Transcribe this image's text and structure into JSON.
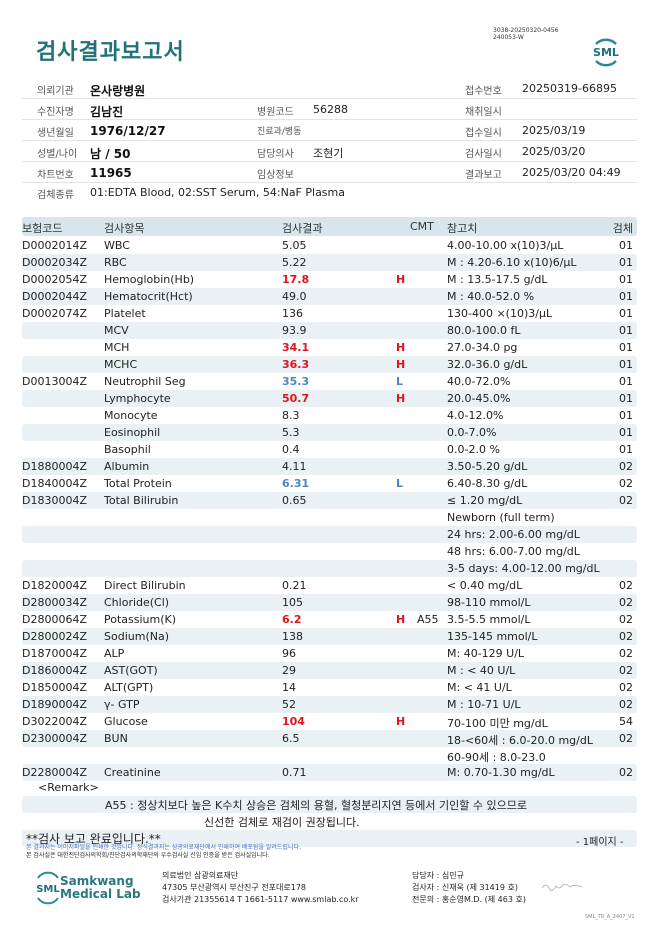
{
  "title": "검사결과보고서",
  "doc_id": [
    "3038-20250320-0456",
    "240053-W"
  ],
  "logo_text": "SML",
  "info": {
    "institution_label": "의뢰기관",
    "institution": "온사랑병원",
    "receipt_no_label": "접수번호",
    "receipt_no": "20250319-66895",
    "patient_label": "수진자명",
    "patient": "김남진",
    "hospital_code_label": "병원코드",
    "hospital_code": "56288",
    "collect_label": "채취일시",
    "collect": "",
    "dob_label": "생년월일",
    "dob": "1976/12/27",
    "dept_label": "진료과/병동",
    "dept": "",
    "receipt_date_label": "접수일시",
    "receipt_date": "2025/03/19",
    "sex_age_label": "성별/나이",
    "sex_age": "남 / 50",
    "doctor_label": "담당의사",
    "doctor": "조현기",
    "test_date_label": "검사일시",
    "test_date": "2025/03/20",
    "chart_label": "차트번호",
    "chart": "11965",
    "clinical_label": "임상정보",
    "clinical": "",
    "report_label": "결과보고",
    "report": "2025/03/20 04:49",
    "specimen_label": "검체종류",
    "specimen": "01:EDTA Blood, 02:SST Serum, 54:NaF Plasma"
  },
  "table": {
    "headers": [
      "보험코드",
      "검사항목",
      "검사결과",
      "CMT",
      "",
      "참고치",
      "검체"
    ],
    "rows": [
      [
        "D0002014Z",
        "WBC",
        "5.05",
        "",
        "",
        "4.00-10.00 x(10)3/μL",
        "01"
      ],
      [
        "D0002034Z",
        "RBC",
        "5.22",
        "",
        "",
        "M : 4.20-6.10 x(10)6/μL",
        "01"
      ],
      [
        "D0002054Z",
        "Hemoglobin(Hb)",
        "17.8",
        "H",
        "",
        "M : 13.5-17.5 g/dL",
        "01"
      ],
      [
        "D0002044Z",
        "Hematocrit(Hct)",
        "49.0",
        "",
        "",
        "M : 40.0-52.0 %",
        "01"
      ],
      [
        "D0002074Z",
        "Platelet",
        "136",
        "",
        "",
        "130-400 ×(10)3/μL",
        "01"
      ],
      [
        "",
        "MCV",
        "93.9",
        "",
        "",
        "80.0-100.0 fL",
        "01"
      ],
      [
        "",
        "MCH",
        "34.1",
        "H",
        "",
        "27.0-34.0 pg",
        "01"
      ],
      [
        "",
        "MCHC",
        "36.3",
        "H",
        "",
        "32.0-36.0 g/dL",
        "01"
      ],
      [
        "D0013004Z",
        "Neutrophil Seg",
        "35.3",
        "L",
        "",
        "40.0-72.0%",
        "01"
      ],
      [
        "",
        "Lymphocyte",
        "50.7",
        "H",
        "",
        "20.0-45.0%",
        "01"
      ],
      [
        "",
        "Monocyte",
        "8.3",
        "",
        "",
        "4.0-12.0%",
        "01"
      ],
      [
        "",
        "Eosinophil",
        "5.3",
        "",
        "",
        "0.0-7.0%",
        "01"
      ],
      [
        "",
        "Basophil",
        "0.4",
        "",
        "",
        "0.0-2.0 %",
        "01"
      ],
      [
        "D1880004Z",
        "Albumin",
        "4.11",
        "",
        "",
        "3.50-5.20 g/dL",
        "02"
      ],
      [
        "D1840004Z",
        "Total Protein",
        "6.31",
        "L",
        "",
        "6.40-8.30 g/dL",
        "02"
      ],
      [
        "D1830004Z",
        "Total Bilirubin",
        "0.65",
        "",
        "",
        "≤ 1.20 mg/dL",
        "02"
      ],
      [
        "",
        "",
        "",
        "",
        "",
        "Newborn (full term)",
        ""
      ],
      [
        "",
        "",
        "",
        "",
        "",
        "24 hrs: 2.00-6.00 mg/dL",
        ""
      ],
      [
        "",
        "",
        "",
        "",
        "",
        "48 hrs: 6.00-7.00 mg/dL",
        ""
      ],
      [
        "",
        "",
        "",
        "",
        "",
        "3-5 days: 4.00-12.00 mg/dL",
        ""
      ],
      [
        "D1820004Z",
        "Direct Bilirubin",
        "0.21",
        "",
        "",
        "< 0.40 mg/dL",
        "02"
      ],
      [
        "D2800034Z",
        "Chloride(Cl)",
        "105",
        "",
        "",
        "98-110 mmol/L",
        "02"
      ],
      [
        "D2800064Z",
        "Potassium(K)",
        "6.2",
        "H",
        "A55",
        "3.5-5.5 mmol/L",
        "02"
      ],
      [
        "D2800024Z",
        "Sodium(Na)",
        "138",
        "",
        "",
        "135-145 mmol/L",
        "02"
      ],
      [
        "D1870004Z",
        "ALP",
        "96",
        "",
        "",
        "M: 40-129 U/L",
        "02"
      ],
      [
        "D1860004Z",
        "AST(GOT)",
        "29",
        "",
        "",
        "M : < 40 U/L",
        "02"
      ],
      [
        "D1850004Z",
        "ALT(GPT)",
        "14",
        "",
        "",
        "M: < 41 U/L",
        "02"
      ],
      [
        "D1890004Z",
        "γ- GTP",
        "52",
        "",
        "",
        "M : 10-71 U/L",
        "02"
      ],
      [
        "D3022004Z",
        "Glucose",
        "104",
        "H",
        "",
        "70-100 미만 mg/dL",
        "54"
      ],
      [
        "D2300004Z",
        "BUN",
        "6.5",
        "",
        "",
        "18-<60세 : 6.0-20.0 mg/dL",
        "02"
      ],
      [
        "",
        "",
        "",
        "",
        "",
        "60-90세 : 8.0-23.0",
        ""
      ],
      [
        "D2280004Z",
        "Creatinine",
        "0.71",
        "",
        "",
        "M: 0.70-1.30 mg/dL",
        "02"
      ]
    ]
  },
  "remark": {
    "label": "<Remark>",
    "line1": "A55 : 정상치보다 높은 K수치 상승은 검체의 용혈, 혈청분리지연 등에서 기인할 수 있으므로",
    "line2": "신선한 검체로 재검이 권장됩니다."
  },
  "footer": {
    "done": "**검사 보고 완료입니다.**",
    "page": "- 1페이지 -",
    "note1": "본 결과지는 이미지파일을 인쇄한 것입니다. 정식결과지는 삼광의료재단에서 인쇄하여 배포됨을 알려드립니다.",
    "note2": "본 검사실은 대한진단검사의학회/진단검사의학재단의 우수검사실 신임 인증을 받은 검사실입니다.",
    "lab_name1": "Samkwang",
    "lab_name2": "Medical Lab",
    "org": "의료법인 삼광의료재단",
    "address": "47305 부산광역시 부산진구 전포대로178",
    "contact": "검사기관 21355614 T 1661-5117 www.smlab.co.kr",
    "manager": "담당자 : 심민규",
    "tester": "검사자 : 신재욱 (제 31419 호)",
    "specialist": "전문의 : 홍순영M.D. (제 463 호)",
    "version": "SML_TR_A_2407_V1"
  },
  "colors": {
    "accent": "#1f7278",
    "high": "#e0141e",
    "low": "#4a86c8"
  }
}
